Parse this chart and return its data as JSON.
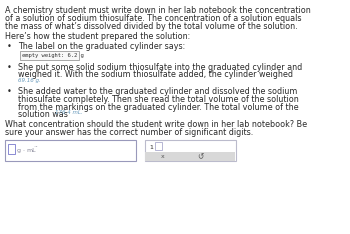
{
  "bg_color": "#ffffff",
  "text_color": "#2a2a2a",
  "font_size_main": 5.8,
  "font_size_small": 5.0,
  "font_size_tiny": 4.3,
  "paragraph1_lines": [
    "A chemistry student must write down in her lab notebook the concentration",
    "of a solution of sodium thiosulfate. The concentration of a solution equals",
    "the mass of what’s dissolved divided by the total volume of the solution."
  ],
  "paragraph2": "Here’s how the student prepared the solution:",
  "bullet1": "The label on the graduated cylinder says:",
  "label_box_text": "empty weight: 6.2 g",
  "bullet2_line1": "She put some solid sodium thiosulfate into the graduated cylinder and",
  "bullet2_line2": "weighed it. With the sodium thiosulfate added, the cylinder weighed",
  "bullet2_value": "69.16 g.",
  "bullet3_line1": "She added water to the graduated cylinder and dissolved the sodium",
  "bullet3_line2": "thiosulfate completely. Then she read the total volume of the solution",
  "bullet3_line3": "from the markings on the graduated cylinder. The total volume of the",
  "bullet3_pre": "solution was ",
  "bullet3_value": "176.4 mL.",
  "question_lines": [
    "What concentration should the student write down in her lab notebook? Be",
    "sure your answer has the correct number of significant digits."
  ],
  "box1_border": "#9999bb",
  "box2_border": "#bbbbcc",
  "label_box_border": "#999999",
  "label_box_bg": "#f8f8f8",
  "cursor_color": "#7777cc",
  "value_color": "#6699bb",
  "gray_bar": "#d8d8d8",
  "btn_text": "#555555"
}
